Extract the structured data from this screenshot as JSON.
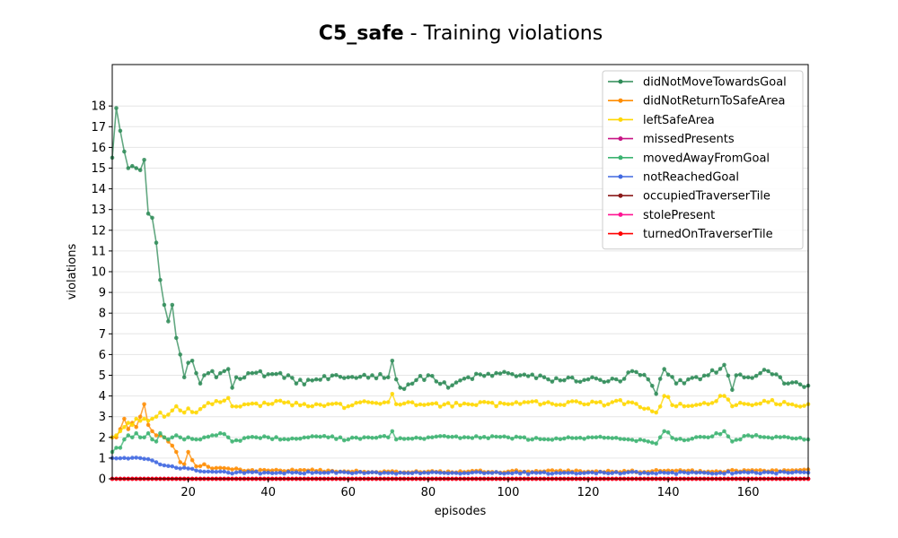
{
  "chart_data": {
    "type": "line",
    "title_bold": "C5_safe",
    "title_rest": " - Training violations",
    "xlabel": "episodes",
    "ylabel": "violations",
    "xlim": [
      1,
      175
    ],
    "ylim": [
      0,
      20
    ],
    "xticks": [
      20,
      40,
      60,
      80,
      100,
      120,
      140,
      160
    ],
    "yticks": [
      0,
      1,
      2,
      3,
      4,
      5,
      6,
      7,
      8,
      9,
      10,
      11,
      12,
      13,
      14,
      15,
      16,
      17,
      18
    ],
    "grid": "horizontal",
    "legend_position": "top-right",
    "series": [
      {
        "name": "didNotMoveTowardsGoal",
        "color": "#2e8b57",
        "keypoints": [
          [
            1,
            15.5
          ],
          [
            2,
            17.9
          ],
          [
            3,
            16.8
          ],
          [
            4,
            15.8
          ],
          [
            5,
            15.0
          ],
          [
            6,
            15.1
          ],
          [
            7,
            15.0
          ],
          [
            8,
            14.9
          ],
          [
            9,
            15.4
          ],
          [
            10,
            12.8
          ],
          [
            11,
            12.6
          ],
          [
            12,
            11.4
          ],
          [
            13,
            9.6
          ],
          [
            14,
            8.4
          ],
          [
            15,
            7.6
          ],
          [
            16,
            8.4
          ],
          [
            17,
            6.8
          ],
          [
            18,
            6.0
          ],
          [
            19,
            4.9
          ],
          [
            20,
            5.6
          ],
          [
            21,
            5.7
          ],
          [
            22,
            5.1
          ],
          [
            23,
            4.6
          ],
          [
            24,
            5.0
          ],
          [
            25,
            5.1
          ],
          [
            26,
            5.2
          ],
          [
            27,
            4.9
          ],
          [
            28,
            5.1
          ],
          [
            29,
            5.2
          ],
          [
            30,
            5.3
          ],
          [
            31,
            4.4
          ],
          [
            32,
            4.9
          ],
          [
            35,
            5.1
          ],
          [
            45,
            5.0
          ],
          [
            47,
            4.6
          ],
          [
            52,
            4.8
          ],
          [
            60,
            4.9
          ],
          [
            66,
            5.0
          ],
          [
            70,
            4.9
          ],
          [
            71,
            5.7
          ],
          [
            72,
            4.8
          ],
          [
            73,
            4.4
          ],
          [
            80,
            5.0
          ],
          [
            85,
            4.4
          ],
          [
            90,
            4.9
          ],
          [
            100,
            5.1
          ],
          [
            110,
            4.8
          ],
          [
            120,
            4.8
          ],
          [
            128,
            4.7
          ],
          [
            131,
            5.2
          ],
          [
            135,
            4.8
          ],
          [
            137,
            4.1
          ],
          [
            139,
            5.3
          ],
          [
            142,
            4.6
          ],
          [
            145,
            4.8
          ],
          [
            150,
            5.0
          ],
          [
            154,
            5.5
          ],
          [
            156,
            4.3
          ],
          [
            157,
            5.0
          ],
          [
            160,
            4.9
          ],
          [
            163,
            5.1
          ],
          [
            165,
            5.2
          ],
          [
            170,
            4.6
          ],
          [
            175,
            4.5
          ]
        ]
      },
      {
        "name": "didNotReturnToSafeArea",
        "color": "#ff8c00",
        "keypoints": [
          [
            1,
            2.0
          ],
          [
            2,
            2.0
          ],
          [
            3,
            2.4
          ],
          [
            4,
            2.9
          ],
          [
            5,
            2.4
          ],
          [
            6,
            2.7
          ],
          [
            7,
            2.5
          ],
          [
            8,
            3.0
          ],
          [
            9,
            3.6
          ],
          [
            10,
            2.6
          ],
          [
            11,
            2.3
          ],
          [
            12,
            2.1
          ],
          [
            13,
            2.1
          ],
          [
            14,
            2.0
          ],
          [
            15,
            1.8
          ],
          [
            16,
            1.6
          ],
          [
            17,
            1.3
          ],
          [
            18,
            0.8
          ],
          [
            19,
            0.7
          ],
          [
            20,
            1.3
          ],
          [
            21,
            0.9
          ],
          [
            22,
            0.6
          ],
          [
            24,
            0.7
          ],
          [
            26,
            0.5
          ],
          [
            30,
            0.5
          ],
          [
            35,
            0.4
          ],
          [
            40,
            0.4
          ],
          [
            50,
            0.4
          ],
          [
            60,
            0.35
          ],
          [
            70,
            0.35
          ],
          [
            80,
            0.35
          ],
          [
            90,
            0.35
          ],
          [
            100,
            0.35
          ],
          [
            110,
            0.4
          ],
          [
            120,
            0.35
          ],
          [
            130,
            0.35
          ],
          [
            140,
            0.4
          ],
          [
            150,
            0.35
          ],
          [
            160,
            0.4
          ],
          [
            170,
            0.4
          ],
          [
            175,
            0.45
          ]
        ]
      },
      {
        "name": "leftSafeArea",
        "color": "#ffd700",
        "keypoints": [
          [
            1,
            2.0
          ],
          [
            2,
            2.1
          ],
          [
            3,
            2.3
          ],
          [
            4,
            2.5
          ],
          [
            5,
            2.7
          ],
          [
            6,
            2.6
          ],
          [
            7,
            2.9
          ],
          [
            8,
            2.8
          ],
          [
            9,
            2.9
          ],
          [
            10,
            2.8
          ],
          [
            11,
            2.9
          ],
          [
            12,
            3.0
          ],
          [
            13,
            3.2
          ],
          [
            14,
            3.0
          ],
          [
            15,
            3.1
          ],
          [
            16,
            3.3
          ],
          [
            17,
            3.5
          ],
          [
            18,
            3.3
          ],
          [
            19,
            3.2
          ],
          [
            20,
            3.4
          ],
          [
            22,
            3.2
          ],
          [
            24,
            3.5
          ],
          [
            26,
            3.6
          ],
          [
            28,
            3.7
          ],
          [
            30,
            3.9
          ],
          [
            31,
            3.5
          ],
          [
            35,
            3.6
          ],
          [
            40,
            3.6
          ],
          [
            45,
            3.7
          ],
          [
            50,
            3.5
          ],
          [
            55,
            3.6
          ],
          [
            60,
            3.5
          ],
          [
            65,
            3.7
          ],
          [
            70,
            3.7
          ],
          [
            71,
            4.1
          ],
          [
            72,
            3.6
          ],
          [
            80,
            3.6
          ],
          [
            90,
            3.6
          ],
          [
            100,
            3.6
          ],
          [
            110,
            3.7
          ],
          [
            120,
            3.6
          ],
          [
            130,
            3.7
          ],
          [
            135,
            3.4
          ],
          [
            137,
            3.2
          ],
          [
            139,
            4.0
          ],
          [
            142,
            3.5
          ],
          [
            150,
            3.6
          ],
          [
            154,
            4.0
          ],
          [
            156,
            3.5
          ],
          [
            160,
            3.6
          ],
          [
            165,
            3.7
          ],
          [
            170,
            3.6
          ],
          [
            175,
            3.6
          ]
        ]
      },
      {
        "name": "missedPresents",
        "color": "#c71585",
        "keypoints": [
          [
            1,
            0.0
          ],
          [
            175,
            0.0
          ]
        ]
      },
      {
        "name": "movedAwayFromGoal",
        "color": "#3cb371",
        "keypoints": [
          [
            1,
            1.3
          ],
          [
            2,
            1.5
          ],
          [
            3,
            1.5
          ],
          [
            4,
            1.9
          ],
          [
            5,
            2.1
          ],
          [
            6,
            2.0
          ],
          [
            7,
            2.2
          ],
          [
            8,
            2.0
          ],
          [
            9,
            2.0
          ],
          [
            10,
            2.2
          ],
          [
            11,
            1.9
          ],
          [
            12,
            1.8
          ],
          [
            13,
            2.2
          ],
          [
            14,
            2.0
          ],
          [
            15,
            1.9
          ],
          [
            16,
            2.0
          ],
          [
            17,
            2.1
          ],
          [
            18,
            2.0
          ],
          [
            19,
            1.9
          ],
          [
            20,
            2.0
          ],
          [
            22,
            1.9
          ],
          [
            24,
            2.0
          ],
          [
            26,
            2.1
          ],
          [
            28,
            2.2
          ],
          [
            30,
            2.0
          ],
          [
            31,
            1.8
          ],
          [
            35,
            2.0
          ],
          [
            40,
            2.0
          ],
          [
            45,
            1.9
          ],
          [
            50,
            2.0
          ],
          [
            55,
            2.0
          ],
          [
            60,
            1.9
          ],
          [
            65,
            2.0
          ],
          [
            70,
            2.0
          ],
          [
            71,
            2.3
          ],
          [
            72,
            1.9
          ],
          [
            80,
            2.0
          ],
          [
            90,
            2.0
          ],
          [
            100,
            2.0
          ],
          [
            110,
            1.9
          ],
          [
            120,
            2.0
          ],
          [
            130,
            1.9
          ],
          [
            135,
            1.8
          ],
          [
            137,
            1.7
          ],
          [
            139,
            2.3
          ],
          [
            142,
            1.9
          ],
          [
            150,
            2.0
          ],
          [
            154,
            2.3
          ],
          [
            156,
            1.8
          ],
          [
            160,
            2.1
          ],
          [
            165,
            2.0
          ],
          [
            170,
            2.0
          ],
          [
            175,
            1.9
          ]
        ]
      },
      {
        "name": "notReachedGoal",
        "color": "#4169e1",
        "keypoints": [
          [
            1,
            1.0
          ],
          [
            8,
            1.0
          ],
          [
            10,
            0.95
          ],
          [
            12,
            0.8
          ],
          [
            14,
            0.65
          ],
          [
            16,
            0.6
          ],
          [
            18,
            0.5
          ],
          [
            20,
            0.5
          ],
          [
            22,
            0.4
          ],
          [
            25,
            0.35
          ],
          [
            30,
            0.3
          ],
          [
            40,
            0.3
          ],
          [
            60,
            0.3
          ],
          [
            80,
            0.28
          ],
          [
            100,
            0.28
          ],
          [
            120,
            0.3
          ],
          [
            140,
            0.28
          ],
          [
            160,
            0.3
          ],
          [
            175,
            0.3
          ]
        ]
      },
      {
        "name": "occupiedTraverserTile",
        "color": "#8b1a1a",
        "keypoints": [
          [
            1,
            0.0
          ],
          [
            175,
            0.0
          ]
        ]
      },
      {
        "name": "stolePresent",
        "color": "#ff1493",
        "keypoints": [
          [
            1,
            0.0
          ],
          [
            175,
            0.0
          ]
        ]
      },
      {
        "name": "turnedOnTraverserTile",
        "color": "#ff0000",
        "keypoints": [
          [
            1,
            0.0
          ],
          [
            175,
            0.0
          ]
        ]
      }
    ]
  }
}
